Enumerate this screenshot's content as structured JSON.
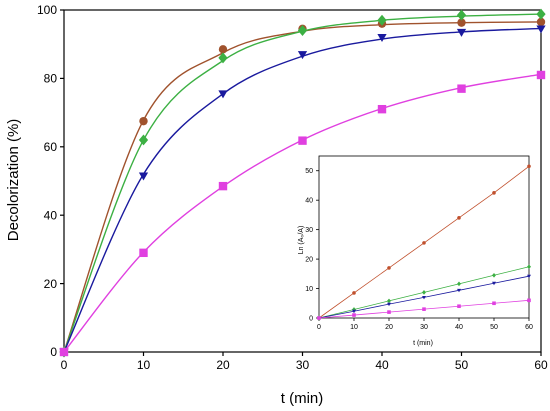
{
  "chart_data": [
    {
      "type": "line",
      "xlabel": "t (min)",
      "ylabel": "Decolorization (%)",
      "xlim": [
        0,
        60
      ],
      "ylim": [
        0,
        100
      ],
      "xticks": [
        "0",
        "10",
        "20",
        "30",
        "40",
        "50",
        "60"
      ],
      "yticks": [
        "0",
        "20",
        "40",
        "60",
        "80",
        "100"
      ],
      "grid": false,
      "x": [
        0,
        10,
        20,
        30,
        40,
        50,
        60
      ],
      "series": [
        {
          "color": "#a0522d",
          "marker": "circle",
          "values": [
            0,
            67.5,
            88.5,
            94.5,
            96.0,
            96.3,
            96.5
          ],
          "curve": [
            0,
            67.8,
            87.5,
            93.8,
            95.7,
            96.3,
            96.5
          ]
        },
        {
          "color": "#3cb043",
          "marker": "diamond",
          "values": [
            0,
            62.0,
            86.0,
            94.0,
            97.0,
            98.5,
            98.8
          ],
          "curve": [
            0,
            62.0,
            85.2,
            93.8,
            97.0,
            98.2,
            98.8
          ]
        },
        {
          "color": "#1a1a9e",
          "marker": "triangle",
          "values": [
            0,
            51.5,
            75.5,
            87.0,
            92.0,
            93.5,
            94.5
          ],
          "curve": [
            0,
            52.0,
            75.5,
            86.5,
            91.5,
            93.6,
            94.6
          ]
        },
        {
          "color": "#e040e0",
          "marker": "square",
          "values": [
            0,
            29.0,
            48.5,
            61.8,
            71.0,
            77.0,
            81.0
          ],
          "curve": [
            0,
            29.2,
            48.4,
            62.0,
            71.2,
            77.3,
            81.2
          ]
        }
      ]
    },
    {
      "type": "line",
      "xlabel": "t (min)",
      "ylabel": "Ln (A₀/A)",
      "xlim": [
        0,
        60
      ],
      "ylim": [
        0,
        55
      ],
      "xticks": [
        "0",
        "10",
        "20",
        "30",
        "40",
        "50",
        "60"
      ],
      "yticks": [
        "0",
        "10",
        "20",
        "30",
        "40",
        "50"
      ],
      "grid": false,
      "x": [
        0,
        10,
        20,
        30,
        40,
        50,
        60
      ],
      "series": [
        {
          "color": "#c0502d",
          "marker": "circle",
          "values": [
            0,
            8.5,
            17.0,
            25.5,
            34.0,
            42.5,
            51.5
          ]
        },
        {
          "color": "#3cb043",
          "marker": "diamond",
          "values": [
            0,
            2.9,
            5.8,
            8.7,
            11.6,
            14.5,
            17.4
          ]
        },
        {
          "color": "#1a1a9e",
          "marker": "triangle",
          "values": [
            0,
            2.3,
            4.7,
            7.0,
            9.4,
            11.8,
            14.2
          ]
        },
        {
          "color": "#e040e0",
          "marker": "square",
          "values": [
            0,
            1.0,
            2.0,
            3.0,
            4.0,
            5.0,
            6.0
          ]
        }
      ]
    }
  ]
}
